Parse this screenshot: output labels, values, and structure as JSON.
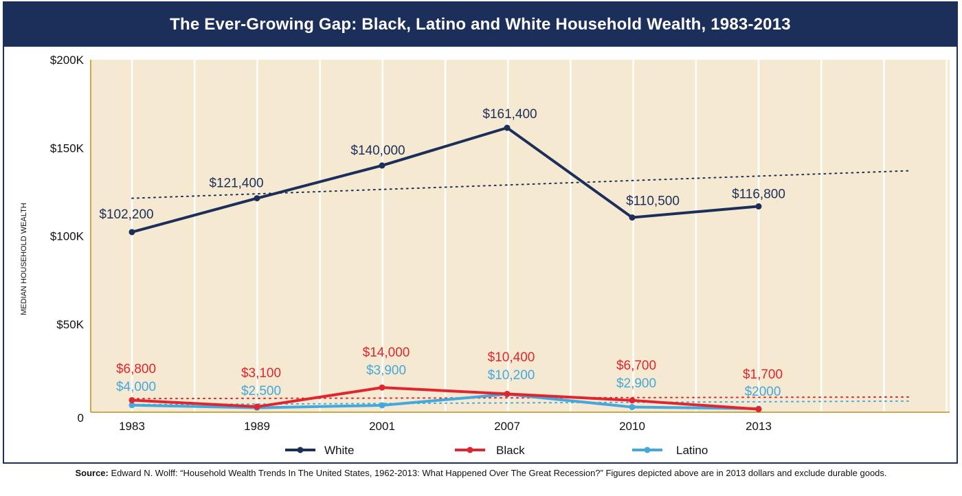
{
  "colors": {
    "white_series": "#1b2f5a",
    "black_series": "#e0252e",
    "latino_series": "#44a8dc",
    "background": "#f5e9d2",
    "axis": "#c9a94a"
  },
  "chart_data": {
    "type": "line",
    "title": "The Ever-Growing Gap: Black, Latino and White Household Wealth, 1983-2013",
    "xlabel": "",
    "ylabel": "MEDIAN HOUSEHOLD WEALTH",
    "ylim": [
      0,
      200000
    ],
    "yticks": [
      {
        "value": 0,
        "label": "0"
      },
      {
        "value": 50000,
        "label": "$50K"
      },
      {
        "value": 100000,
        "label": "$100K"
      },
      {
        "value": 150000,
        "label": "$150K"
      },
      {
        "value": 200000,
        "label": "$200K"
      }
    ],
    "categories": [
      "1983",
      "1989",
      "2001",
      "2007",
      "2010",
      "2013"
    ],
    "grid": "vertical",
    "legend_position": "bottom",
    "series": [
      {
        "name": "White",
        "colorKey": "white_series",
        "values": [
          102200,
          121400,
          140000,
          161400,
          110500,
          116800
        ],
        "labels": [
          "$102,200",
          "$121,400",
          "$140,000",
          "$161,400",
          "$110,500",
          "$116,800"
        ],
        "trend": [
          121400,
          137000
        ]
      },
      {
        "name": "Black",
        "colorKey": "black_series",
        "values": [
          6800,
          3100,
          14000,
          10400,
          6700,
          1700
        ],
        "labels": [
          "$6,800",
          "$3,100",
          "$14,000",
          "$10,400",
          "$6,700",
          "$1,700"
        ],
        "trend": [
          7700,
          8600
        ]
      },
      {
        "name": "Latino",
        "colorKey": "latino_series",
        "values": [
          4000,
          2500,
          3900,
          10200,
          2900,
          2000
        ],
        "labels": [
          "$4,000",
          "$2,500",
          "$3,900",
          "$10,200",
          "$2,900",
          "$2000"
        ],
        "trend": [
          4300,
          6300
        ]
      }
    ]
  },
  "source": {
    "prefix": "Source:",
    "text": "Edward N. Wolff: “Household Wealth Trends In The United States, 1962-2013: What Happened Over The Great Recession?” Figures depicted above are in 2013 dollars and exclude durable goods."
  }
}
